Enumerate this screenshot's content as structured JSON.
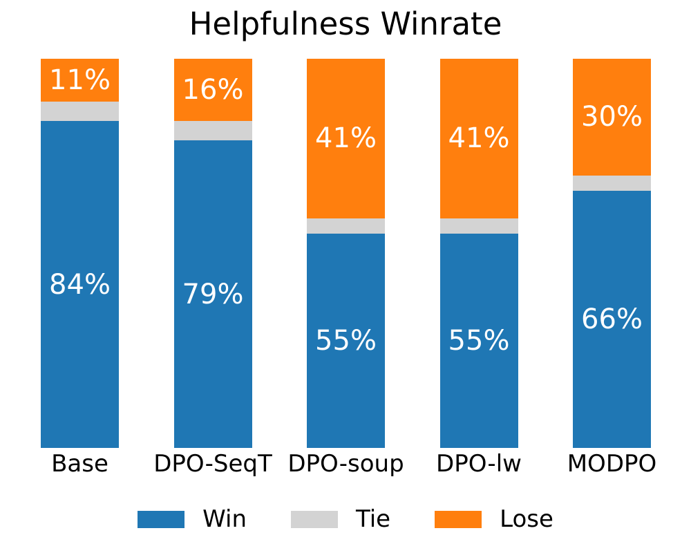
{
  "title": "Helpfulness Winrate",
  "chart_data": {
    "type": "bar",
    "stacked": true,
    "orientation": "vertical",
    "title": "Helpfulness Winrate",
    "xlabel": "",
    "ylabel": "",
    "ylim": [
      0,
      100
    ],
    "grid": false,
    "axes_visible": false,
    "legend_position": "bottom",
    "value_label_color": "#ffffff",
    "categories": [
      "Base",
      "DPO-SeqT",
      "DPO-soup",
      "DPO-lw",
      "MODPO"
    ],
    "series": [
      {
        "name": "Win",
        "color": "#1f77b4",
        "values": [
          84,
          79,
          55,
          55,
          66
        ],
        "labels": [
          "84%",
          "79%",
          "55%",
          "55%",
          "66%"
        ]
      },
      {
        "name": "Tie",
        "color": "#d3d3d3",
        "values": [
          5,
          5,
          4,
          4,
          4
        ],
        "labels": [
          "",
          "",
          "",
          "",
          ""
        ]
      },
      {
        "name": "Lose",
        "color": "#ff7f0e",
        "values": [
          11,
          16,
          41,
          41,
          30
        ],
        "labels": [
          "11%",
          "16%",
          "41%",
          "41%",
          "30%"
        ]
      }
    ]
  }
}
